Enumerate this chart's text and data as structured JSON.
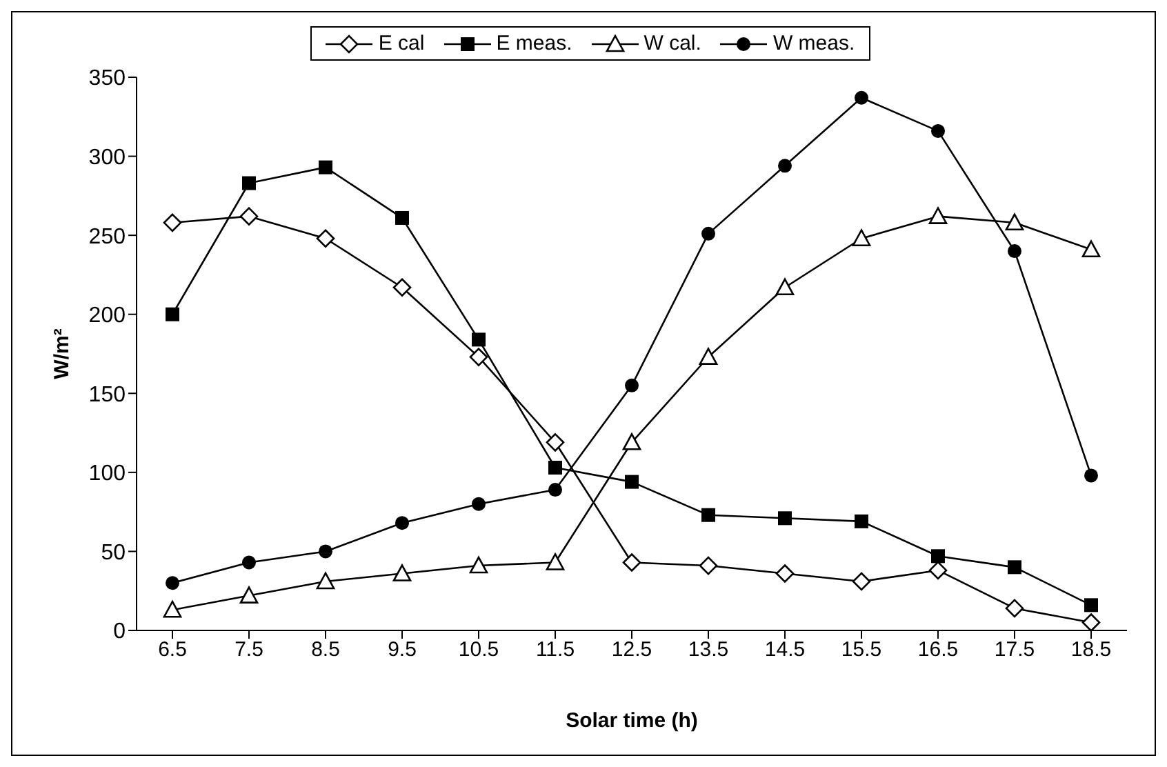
{
  "chart_data": {
    "type": "line",
    "xlabel": "Solar time (h)",
    "ylabel": "W/m²",
    "categories": [
      "6.5",
      "7.5",
      "8.5",
      "9.5",
      "10.5",
      "11.5",
      "12.5",
      "13.5",
      "14.5",
      "15.5",
      "16.5",
      "17.5",
      "18.5"
    ],
    "ylim": [
      0,
      350
    ],
    "yticks": [
      0,
      50,
      100,
      150,
      200,
      250,
      300,
      350
    ],
    "grid": false,
    "legend": "top",
    "series": [
      {
        "name": "E cal",
        "color": "#000000",
        "marker": "diamond",
        "values": [
          258,
          262,
          248,
          217,
          173,
          119,
          43,
          41,
          36,
          31,
          38,
          14,
          5
        ]
      },
      {
        "name": "E meas.",
        "color": "#000000",
        "marker": "square",
        "values": [
          200,
          283,
          293,
          261,
          184,
          103,
          94,
          73,
          71,
          69,
          47,
          40,
          16
        ]
      },
      {
        "name": "W cal.",
        "color": "#000000",
        "marker": "triangle",
        "values": [
          13,
          22,
          31,
          36,
          41,
          43,
          119,
          173,
          217,
          248,
          262,
          258,
          241
        ]
      },
      {
        "name": "W meas.",
        "color": "#000000",
        "marker": "circle",
        "values": [
          30,
          43,
          50,
          68,
          80,
          89,
          155,
          251,
          294,
          337,
          316,
          240,
          98
        ]
      }
    ]
  }
}
